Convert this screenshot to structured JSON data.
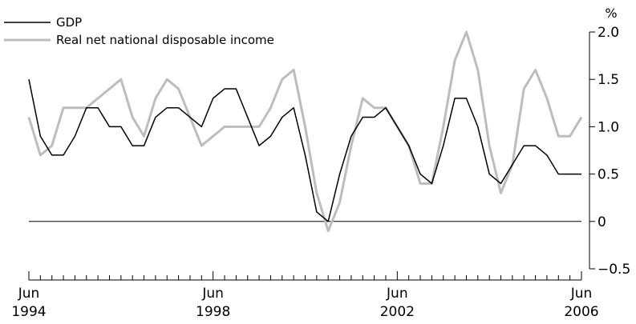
{
  "chart_data": {
    "type": "line",
    "unit_label": "%",
    "x_ticks": [
      {
        "month": "Jun",
        "year": "1994"
      },
      {
        "month": "Jun",
        "year": "1998"
      },
      {
        "month": "Jun",
        "year": "2002"
      },
      {
        "month": "Jun",
        "year": "2006"
      }
    ],
    "ylim": [
      -0.5,
      2.0
    ],
    "y_ticks": [
      "−0.5",
      "0",
      "0.5",
      "1.0",
      "1.5",
      "2.0"
    ],
    "y_tick_values": [
      -0.5,
      0,
      0.5,
      1.0,
      1.5,
      2.0
    ],
    "zero_line": true,
    "legend_position": "top-left",
    "quarters": [
      "Jun 1994",
      "Sep 1994",
      "Dec 1994",
      "Mar 1995",
      "Jun 1995",
      "Sep 1995",
      "Dec 1995",
      "Mar 1996",
      "Jun 1996",
      "Sep 1996",
      "Dec 1996",
      "Mar 1997",
      "Jun 1997",
      "Sep 1997",
      "Dec 1997",
      "Mar 1998",
      "Jun 1998",
      "Sep 1998",
      "Dec 1998",
      "Mar 1999",
      "Jun 1999",
      "Sep 1999",
      "Dec 1999",
      "Mar 2000",
      "Jun 2000",
      "Sep 2000",
      "Dec 2000",
      "Mar 2001",
      "Jun 2001",
      "Sep 2001",
      "Dec 2001",
      "Mar 2002",
      "Jun 2002",
      "Sep 2002",
      "Dec 2002",
      "Mar 2003",
      "Jun 2003",
      "Sep 2003",
      "Dec 2003",
      "Mar 2004",
      "Jun 2004",
      "Sep 2004",
      "Dec 2004",
      "Mar 2005",
      "Jun 2005",
      "Sep 2005",
      "Dec 2005",
      "Mar 2006",
      "Jun 2006"
    ],
    "series": [
      {
        "name": "GDP",
        "color": "#000000",
        "values": [
          1.5,
          0.9,
          0.7,
          0.7,
          0.9,
          1.2,
          1.2,
          1.0,
          1.0,
          0.8,
          0.8,
          1.1,
          1.2,
          1.2,
          1.1,
          1.0,
          1.3,
          1.4,
          1.4,
          1.1,
          0.8,
          0.9,
          1.1,
          1.2,
          0.7,
          0.1,
          0.0,
          0.5,
          0.9,
          1.1,
          1.1,
          1.2,
          1.0,
          0.8,
          0.5,
          0.4,
          0.8,
          1.3,
          1.3,
          1.0,
          0.5,
          0.4,
          0.6,
          0.8,
          0.8,
          0.7,
          0.5,
          0.5,
          0.5
        ]
      },
      {
        "name": "Real net national disposable income",
        "color": "#bdbdbd",
        "values": [
          1.1,
          0.7,
          0.8,
          1.2,
          1.2,
          1.2,
          1.3,
          1.4,
          1.5,
          1.1,
          0.9,
          1.3,
          1.5,
          1.4,
          1.1,
          0.8,
          0.9,
          1.0,
          1.0,
          1.0,
          1.0,
          1.2,
          1.5,
          1.6,
          1.0,
          0.3,
          -0.1,
          0.2,
          0.8,
          1.3,
          1.2,
          1.2,
          1.0,
          0.8,
          0.4,
          0.4,
          1.0,
          1.7,
          2.0,
          1.6,
          0.8,
          0.3,
          0.6,
          1.4,
          1.6,
          1.3,
          0.9,
          0.9,
          1.1
        ]
      }
    ]
  }
}
